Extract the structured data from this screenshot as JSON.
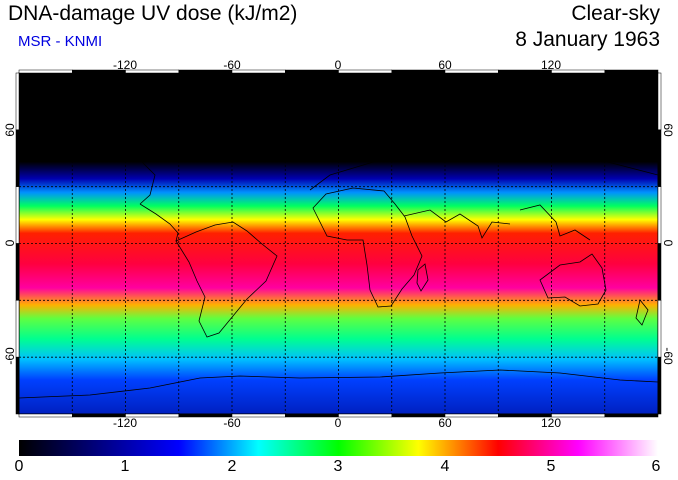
{
  "header": {
    "title": "DNA-damage UV dose (kJ/m2)",
    "subtitle": "MSR - KNMI",
    "sky_type": "Clear-sky",
    "date": "8 January 1963"
  },
  "map": {
    "lon_ticks": [
      "-120",
      "-60",
      "0",
      "60",
      "120"
    ],
    "lat_ticks": [
      "60",
      "0",
      "-60"
    ],
    "lon_range": [
      -180,
      180
    ],
    "lat_range": [
      -90,
      90
    ],
    "gridline_style": "dotted",
    "colors": {
      "ocean_text": "#0000e0"
    }
  },
  "colorbar": {
    "labels": [
      "0",
      "1",
      "2",
      "3",
      "4",
      "5",
      "6"
    ],
    "min": 0,
    "max": 6,
    "stops": [
      "#000000",
      "#000080",
      "#0000ff",
      "#00ffff",
      "#00ff00",
      "#ffff00",
      "#ff0000",
      "#ff00ff",
      "#ffffff"
    ]
  }
}
